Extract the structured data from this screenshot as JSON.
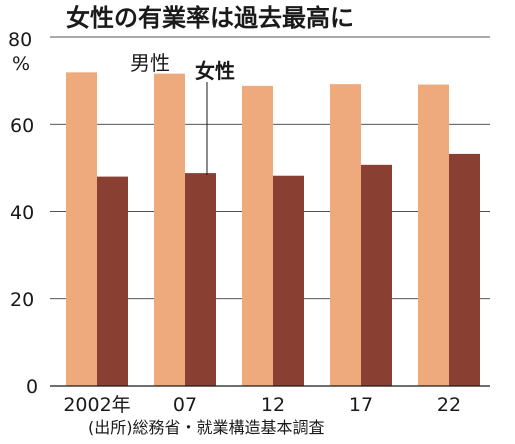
{
  "chart_data": {
    "type": "bar",
    "title": "女性の有業率は過去最高に",
    "unit": "%",
    "categories": [
      "2002年",
      "07",
      "12",
      "17",
      "22"
    ],
    "series": [
      {
        "name": "男性",
        "values": [
          71.9,
          71.6,
          68.8,
          69.2,
          69.1
        ]
      },
      {
        "name": "女性",
        "values": [
          48.0,
          48.8,
          48.2,
          50.7,
          53.2
        ]
      }
    ],
    "ylim": [
      0,
      80
    ],
    "yticks": [
      0,
      20,
      40,
      60,
      80
    ],
    "grid": true,
    "legend_placement": "top-left, labels above second group",
    "source": "(出所)総務省・就業構造基本調査"
  },
  "colors": {
    "male": "#eeaa7d",
    "female": "#8a3f33",
    "grid": "#1a1a1a",
    "text": "#1a1a1a"
  }
}
